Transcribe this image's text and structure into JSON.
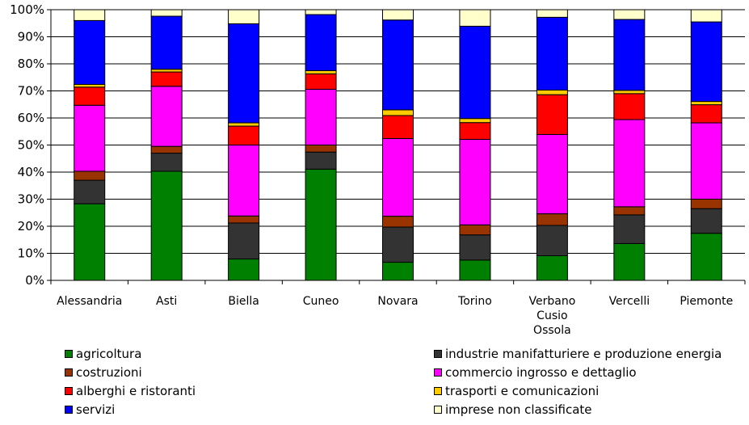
{
  "chart_data": {
    "type": "bar",
    "stacked": true,
    "percent_stacked": true,
    "categories": [
      [
        "Alessandria"
      ],
      [
        "Asti"
      ],
      [
        "Biella"
      ],
      [
        "Cuneo"
      ],
      [
        "Novara"
      ],
      [
        "Torino"
      ],
      [
        "Verbano",
        "Cusio",
        "Ossola"
      ],
      [
        "Vercelli"
      ],
      [
        "Piemonte"
      ]
    ],
    "ylim": [
      0,
      100
    ],
    "yticks": [
      "0%",
      "10%",
      "20%",
      "30%",
      "40%",
      "50%",
      "60%",
      "70%",
      "80%",
      "90%",
      "100%"
    ],
    "grid": true,
    "legend_position": "bottom",
    "series": [
      {
        "name": "agricoltura",
        "color": "#008000",
        "values": [
          28.3,
          40.3,
          7.9,
          41.1,
          6.7,
          7.5,
          9.1,
          13.6,
          17.4
        ]
      },
      {
        "name": "industrie manifatturiere e produzione energia",
        "color": "#333333",
        "values": [
          8.7,
          6.7,
          13.3,
          6.3,
          13.0,
          9.3,
          11.2,
          10.6,
          9.1
        ]
      },
      {
        "name": "costruzioni",
        "color": "#993300",
        "values": [
          3.3,
          2.5,
          2.6,
          2.6,
          4.0,
          3.7,
          4.3,
          3.0,
          3.5
        ]
      },
      {
        "name": "commercio ingrosso e dettaglio",
        "color": "#ff00ff",
        "values": [
          24.4,
          22.2,
          26.2,
          20.6,
          28.7,
          31.6,
          29.3,
          32.2,
          28.2
        ]
      },
      {
        "name": "alberghi e ristoranti",
        "color": "#ff0000",
        "values": [
          6.7,
          5.3,
          7.0,
          5.7,
          8.5,
          6.2,
          14.7,
          9.6,
          6.7
        ]
      },
      {
        "name": "trasporti e comunicazioni",
        "color": "#ffcc00",
        "values": [
          1.0,
          1.0,
          1.2,
          1.2,
          2.1,
          1.5,
          1.7,
          1.2,
          1.2
        ]
      },
      {
        "name": "servizi",
        "color": "#0000ff",
        "values": [
          23.6,
          19.6,
          36.6,
          20.7,
          33.2,
          34.1,
          26.9,
          26.2,
          29.4
        ]
      },
      {
        "name": "imprese non classificate",
        "color": "#ffffcc",
        "values": [
          4.0,
          2.4,
          5.2,
          1.8,
          3.8,
          6.1,
          2.8,
          3.6,
          4.5
        ]
      }
    ],
    "legend_columns": [
      [
        "agricoltura",
        "costruzioni",
        "alberghi e ristoranti",
        "servizi"
      ],
      [
        "industrie manifatturiere e produzione energia",
        "commercio ingrosso e dettaglio",
        "trasporti e comunicazioni",
        "imprese non classificate"
      ]
    ]
  }
}
